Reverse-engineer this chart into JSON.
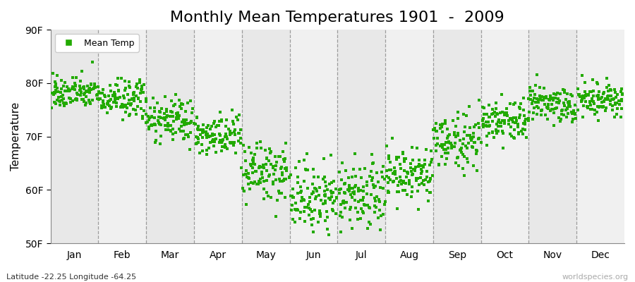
{
  "title": "Monthly Mean Temperatures 1901  -  2009",
  "ylabel": "Temperature",
  "xlabel": "",
  "ylim": [
    50,
    90
  ],
  "yticks": [
    50,
    60,
    70,
    80,
    90
  ],
  "ytick_labels": [
    "50F",
    "60F",
    "70F",
    "80F",
    "90F"
  ],
  "months": [
    "Jan",
    "Feb",
    "Mar",
    "Apr",
    "May",
    "Jun",
    "Jul",
    "Aug",
    "Sep",
    "Oct",
    "Nov",
    "Dec"
  ],
  "dot_color": "#22aa00",
  "bg_color_odd": "#e8e8e8",
  "bg_color_even": "#f0f0f0",
  "legend_label": "Mean Temp",
  "footer_left": "Latitude -22.25 Longitude -64.25",
  "footer_right": "worldspecies.org",
  "title_fontsize": 16,
  "monthly_means": [
    78.2,
    77.0,
    73.0,
    70.0,
    63.0,
    58.5,
    58.5,
    62.5,
    69.0,
    73.0,
    76.0,
    77.0
  ],
  "monthly_stds": [
    1.5,
    1.8,
    2.0,
    2.0,
    2.8,
    3.2,
    3.2,
    2.8,
    2.5,
    2.0,
    1.8,
    1.5
  ],
  "n_years": 109,
  "seed": 42
}
